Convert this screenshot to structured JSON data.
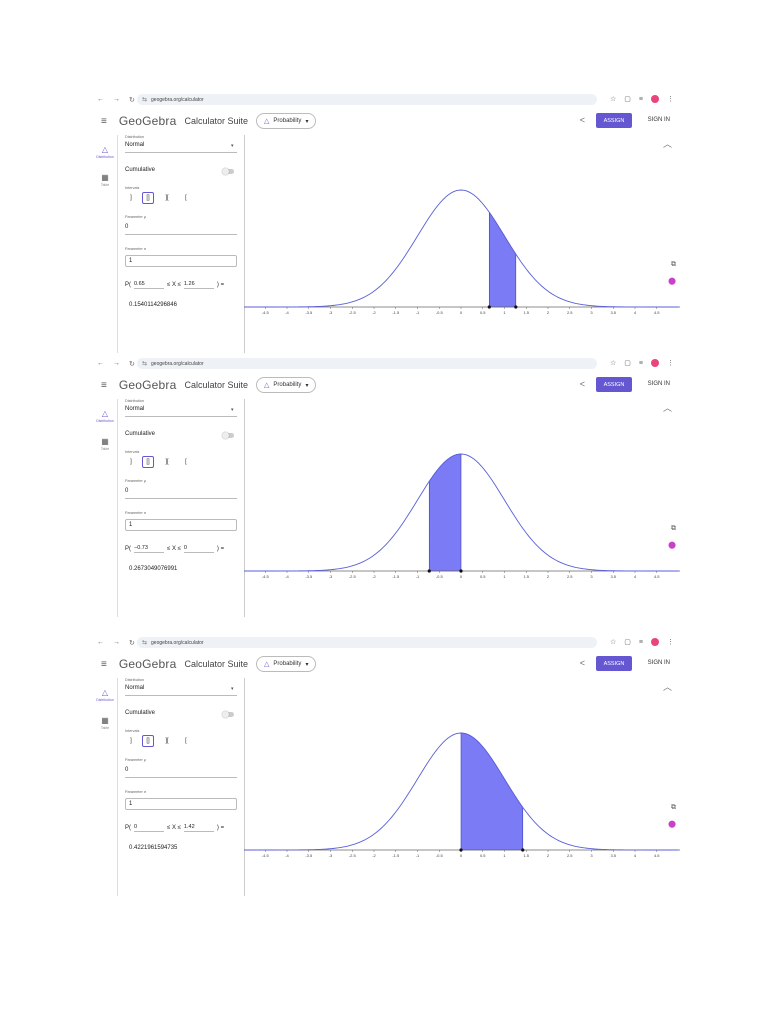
{
  "screens": [
    {
      "url": "geogebra.org/calculator",
      "menu_icon": "menu-icon",
      "logo": "GeoGebra",
      "suite": "Calculator Suite",
      "app": "Probability",
      "assign_label": "ASSIGN",
      "signin_label": "SIGN IN",
      "rail": [
        {
          "label": "Distribution",
          "icon": "distribution-icon"
        },
        {
          "label": "Table",
          "icon": "table-icon"
        }
      ],
      "distribution_label": "Distribution",
      "distribution": "Normal",
      "cumulative_label": "Cumulative",
      "intervals_label": "Intervals",
      "interval_buttons": [
        "]",
        "[]",
        "][",
        "["
      ],
      "mu_label": "Parameter μ",
      "mu": "0",
      "sigma_label": "Parameter σ",
      "sigma": "1",
      "prob_prefix": "P(",
      "lower": "0.65",
      "mid_text": "≤ X ≤",
      "upper": "1.26",
      "prob_suffix": ") =",
      "result": "0.1540114296846",
      "shade_from": 0.65,
      "shade_to": 1.26
    },
    {
      "url": "geogebra.org/calculator",
      "menu_icon": "menu-icon",
      "logo": "GeoGebra",
      "suite": "Calculator Suite",
      "app": "Probability",
      "assign_label": "ASSIGN",
      "signin_label": "SIGN IN",
      "rail": [
        {
          "label": "Distribution",
          "icon": "distribution-icon"
        },
        {
          "label": "Table",
          "icon": "table-icon"
        }
      ],
      "distribution_label": "Distribution",
      "distribution": "Normal",
      "cumulative_label": "Cumulative",
      "intervals_label": "Intervals",
      "interval_buttons": [
        "]",
        "[]",
        "][",
        "["
      ],
      "mu_label": "Parameter μ",
      "mu": "0",
      "sigma_label": "Parameter σ",
      "sigma": "1",
      "prob_prefix": "P(",
      "lower": "−0.73",
      "mid_text": "≤ X ≤",
      "upper": "0",
      "prob_suffix": ") =",
      "result": "0.2673049076991",
      "shade_from": -0.73,
      "shade_to": 0
    },
    {
      "url": "geogebra.org/calculator",
      "menu_icon": "menu-icon",
      "logo": "GeoGebra",
      "suite": "Calculator Suite",
      "app": "Probability",
      "assign_label": "ASSIGN",
      "signin_label": "SIGN IN",
      "rail": [
        {
          "label": "Distribution",
          "icon": "distribution-icon"
        },
        {
          "label": "Table",
          "icon": "table-icon"
        }
      ],
      "distribution_label": "Distribution",
      "distribution": "Normal",
      "cumulative_label": "Cumulative",
      "intervals_label": "Intervals",
      "interval_buttons": [
        "]",
        "[]",
        "][",
        "["
      ],
      "mu_label": "Parameter μ",
      "mu": "0",
      "sigma_label": "Parameter σ",
      "sigma": "1",
      "prob_prefix": "P(",
      "lower": "0",
      "mid_text": "≤ X ≤",
      "upper": "1.42",
      "prob_suffix": ") =",
      "result": "0.4221961594735",
      "shade_from": 0,
      "shade_to": 1.42
    }
  ],
  "x_ticks": [
    "-4.5",
    "-4",
    "-3.5",
    "-3",
    "-2.5",
    "-2",
    "-1.5",
    "-1",
    "-0.5",
    "0",
    "0.5",
    "1",
    "1.5",
    "2",
    "2.5",
    "3",
    "3.5",
    "4",
    "4.5"
  ],
  "colors": {
    "accent": "#6557d2",
    "curve": "#5a5fd8",
    "shade": "#7b7cf5"
  }
}
